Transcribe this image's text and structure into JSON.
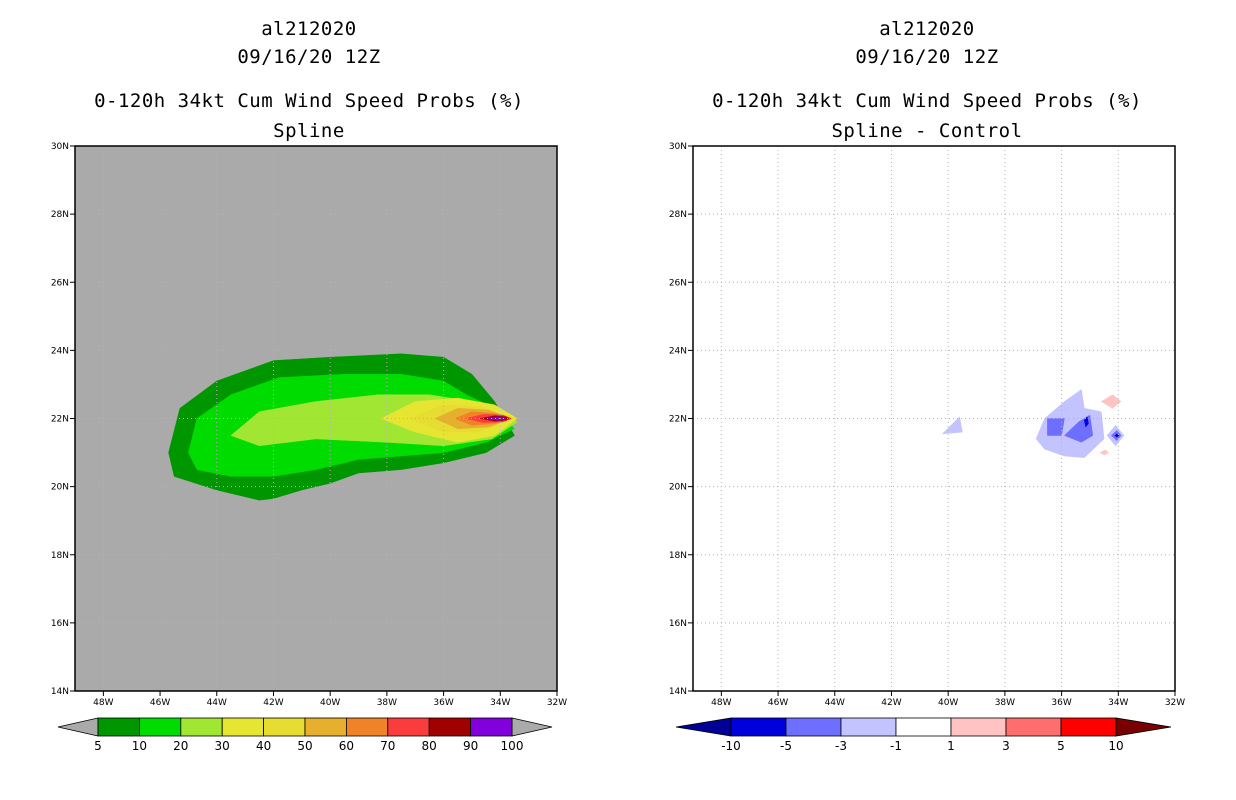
{
  "chart_data": [
    {
      "type": "heatmap",
      "title_lines": [
        "al212020",
        "09/16/20 12Z",
        "0-120h 34kt Cum Wind Speed Probs (%)",
        "Spline"
      ],
      "xlabel": "",
      "ylabel": "",
      "x_ticks": [
        "48W",
        "46W",
        "44W",
        "42W",
        "40W",
        "38W",
        "36W",
        "34W",
        "32W"
      ],
      "x_tick_values": [
        -48,
        -46,
        -44,
        -42,
        -40,
        -38,
        -36,
        -34,
        -32
      ],
      "y_ticks": [
        "14N",
        "16N",
        "18N",
        "20N",
        "22N",
        "24N",
        "26N",
        "28N",
        "30N"
      ],
      "y_tick_values": [
        14,
        16,
        18,
        20,
        22,
        24,
        26,
        28,
        30
      ],
      "xlim": [
        -49,
        -32
      ],
      "ylim": [
        14,
        30
      ],
      "grid": true,
      "background_color": "#aaaaaa",
      "colorbar_labels": [
        "5",
        "10",
        "20",
        "30",
        "40",
        "50",
        "60",
        "70",
        "80",
        "90",
        "100"
      ],
      "colorbar_levels": [
        5,
        10,
        20,
        30,
        40,
        50,
        60,
        70,
        80,
        90,
        100
      ],
      "colorbar_colors": [
        "#009600",
        "#00dc00",
        "#a0e632",
        "#e6e632",
        "#e6dc32",
        "#e6af2d",
        "#f08228",
        "#fa3c3c",
        "#a00000",
        "#8200dc"
      ],
      "colorbar_ends": [
        "#aaaaaa",
        "#aaaaaa"
      ],
      "contours": [
        {
          "level": 5,
          "color": "#009600",
          "polygon": [
            [
              -45.7,
              21
            ],
            [
              -45.3,
              22.3
            ],
            [
              -44,
              23.1
            ],
            [
              -42,
              23.7
            ],
            [
              -40,
              23.8
            ],
            [
              -37.5,
              23.9
            ],
            [
              -36,
              23.8
            ],
            [
              -35,
              23.3
            ],
            [
              -34.2,
              22.5
            ],
            [
              -33.5,
              21.5
            ],
            [
              -34.5,
              21
            ],
            [
              -36,
              20.7
            ],
            [
              -37.5,
              20.5
            ],
            [
              -39,
              20.4
            ],
            [
              -40,
              20.1
            ],
            [
              -41,
              19.9
            ],
            [
              -42,
              19.65
            ],
            [
              -42.5,
              19.6
            ],
            [
              -44,
              19.9
            ],
            [
              -45.5,
              20.3
            ]
          ]
        },
        {
          "level": 10,
          "color": "#00dc00",
          "polygon": [
            [
              -45,
              21
            ],
            [
              -44.7,
              22
            ],
            [
              -43.5,
              22.7
            ],
            [
              -41.8,
              23.2
            ],
            [
              -39.5,
              23.3
            ],
            [
              -37.5,
              23.3
            ],
            [
              -36,
              23.1
            ],
            [
              -35.2,
              22.7
            ],
            [
              -34.2,
              22.3
            ],
            [
              -33.5,
              21.7
            ],
            [
              -34.5,
              21.3
            ],
            [
              -36,
              21
            ],
            [
              -37.5,
              20.9
            ],
            [
              -39,
              20.8
            ],
            [
              -40.5,
              20.5
            ],
            [
              -42,
              20.3
            ],
            [
              -43.5,
              20.3
            ],
            [
              -44.7,
              20.5
            ]
          ]
        },
        {
          "level": 20,
          "color": "#a0e632",
          "polygon": [
            [
              -43.5,
              21.5
            ],
            [
              -42.5,
              22.2
            ],
            [
              -40.5,
              22.5
            ],
            [
              -38.3,
              22.7
            ],
            [
              -36.5,
              22.7
            ],
            [
              -35,
              22.5
            ],
            [
              -34,
              22.2
            ],
            [
              -33.4,
              21.9
            ],
            [
              -34.3,
              21.4
            ],
            [
              -36,
              21.2
            ],
            [
              -38,
              21.3
            ],
            [
              -40.5,
              21.4
            ],
            [
              -42.5,
              21.2
            ]
          ]
        },
        {
          "level": 30,
          "color": "#e6e632",
          "polygon": [
            [
              -38.2,
              22
            ],
            [
              -37,
              22.5
            ],
            [
              -35.5,
              22.6
            ],
            [
              -34.2,
              22.4
            ],
            [
              -33.4,
              22
            ],
            [
              -34.2,
              21.5
            ],
            [
              -35.5,
              21.3
            ],
            [
              -37,
              21.6
            ]
          ]
        },
        {
          "level": 40,
          "color": "#e6dc32",
          "polygon": [
            [
              -37.2,
              22
            ],
            [
              -36,
              22.4
            ],
            [
              -34.8,
              22.35
            ],
            [
              -33.5,
              22
            ],
            [
              -34.8,
              21.6
            ],
            [
              -36,
              21.6
            ]
          ]
        },
        {
          "level": 50,
          "color": "#e6af2d",
          "polygon": [
            [
              -36.3,
              22
            ],
            [
              -35.5,
              22.3
            ],
            [
              -34.4,
              22.25
            ],
            [
              -33.6,
              22
            ],
            [
              -34.4,
              21.75
            ],
            [
              -35.5,
              21.7
            ]
          ]
        },
        {
          "level": 60,
          "color": "#f08228",
          "polygon": [
            [
              -35.6,
              22
            ],
            [
              -35,
              22.2
            ],
            [
              -34.2,
              22.15
            ],
            [
              -33.6,
              22
            ],
            [
              -34.2,
              21.85
            ],
            [
              -35,
              21.8
            ]
          ]
        },
        {
          "level": 70,
          "color": "#fa3c3c",
          "polygon": [
            [
              -35.2,
              22
            ],
            [
              -34.6,
              22.12
            ],
            [
              -33.9,
              22.1
            ],
            [
              -33.6,
              22
            ],
            [
              -33.9,
              21.9
            ],
            [
              -34.6,
              21.88
            ]
          ]
        },
        {
          "level": 80,
          "color": "#a00000",
          "polygon": [
            [
              -34.7,
              22
            ],
            [
              -34.2,
              22.08
            ],
            [
              -33.8,
              22.05
            ],
            [
              -33.7,
              22
            ],
            [
              -33.8,
              21.95
            ],
            [
              -34.2,
              21.92
            ]
          ]
        },
        {
          "level": 90,
          "color": "#8200dc",
          "polygon": [
            [
              -34.45,
              22
            ],
            [
              -34.1,
              22.05
            ],
            [
              -33.85,
              22.02
            ],
            [
              -33.8,
              22
            ],
            [
              -33.85,
              21.98
            ],
            [
              -34.1,
              21.95
            ]
          ]
        }
      ]
    },
    {
      "type": "heatmap",
      "title_lines": [
        "al212020",
        "09/16/20 12Z",
        "0-120h 34kt Cum Wind Speed Probs (%)",
        "Spline - Control"
      ],
      "xlabel": "",
      "ylabel": "",
      "x_ticks": [
        "48W",
        "46W",
        "44W",
        "42W",
        "40W",
        "38W",
        "36W",
        "34W",
        "32W"
      ],
      "x_tick_values": [
        -48,
        -46,
        -44,
        -42,
        -40,
        -38,
        -36,
        -34,
        -32
      ],
      "y_ticks": [
        "14N",
        "16N",
        "18N",
        "20N",
        "22N",
        "24N",
        "26N",
        "28N",
        "30N"
      ],
      "y_tick_values": [
        14,
        16,
        18,
        20,
        22,
        24,
        26,
        28,
        30
      ],
      "xlim": [
        -49,
        -32
      ],
      "ylim": [
        14,
        30
      ],
      "grid": true,
      "background_color": "#ffffff",
      "colorbar_labels": [
        "-10",
        "-5",
        "-3",
        "-1",
        "1",
        "3",
        "5",
        "10"
      ],
      "colorbar_levels": [
        -10,
        -5,
        -3,
        -1,
        1,
        3,
        5,
        10
      ],
      "colorbar_colors": [
        "#0000dc",
        "#6e6eff",
        "#c3c3ff",
        "#ffffff",
        "#ffc3c3",
        "#ff6e6e",
        "#ff0000"
      ],
      "colorbar_ends": [
        "#000096",
        "#780000"
      ],
      "contours": [
        {
          "level": -1,
          "color": "#c3c3ff",
          "polygon": [
            [
              -40.2,
              21.55
            ],
            [
              -39.6,
              22.05
            ],
            [
              -39.5,
              21.6
            ]
          ]
        },
        {
          "level": -1,
          "color": "#c3c3ff",
          "polygon": [
            [
              -36.9,
              21.4
            ],
            [
              -36.6,
              22
            ],
            [
              -35.9,
              22.5
            ],
            [
              -35.3,
              22.85
            ],
            [
              -35.2,
              22.3
            ],
            [
              -34.6,
              22.2
            ],
            [
              -34.5,
              21.4
            ],
            [
              -35.2,
              20.85
            ],
            [
              -35.9,
              20.9
            ],
            [
              -36.6,
              21.1
            ]
          ]
        },
        {
          "level": -3,
          "color": "#6e6eff",
          "polygon": [
            [
              -36.5,
              21.5
            ],
            [
              -36.5,
              22
            ],
            [
              -35.9,
              22
            ],
            [
              -36,
              21.5
            ]
          ]
        },
        {
          "level": -3,
          "color": "#6e6eff",
          "polygon": [
            [
              -35.9,
              21.5
            ],
            [
              -35.4,
              21.9
            ],
            [
              -35,
              22.1
            ],
            [
              -34.9,
              21.5
            ],
            [
              -35.3,
              21.3
            ]
          ]
        },
        {
          "level": -1,
          "color": "#c3c3ff",
          "polygon": [
            [
              -34.1,
              21.2
            ],
            [
              -34.4,
              21.5
            ],
            [
              -34.1,
              21.8
            ],
            [
              -33.8,
              21.5
            ]
          ]
        },
        {
          "level": -3,
          "color": "#6e6eff",
          "polygon": [
            [
              -34.05,
              21.35
            ],
            [
              -34.25,
              21.5
            ],
            [
              -34.05,
              21.65
            ],
            [
              -33.9,
              21.5
            ]
          ]
        },
        {
          "level": -5,
          "color": "#0000dc",
          "polygon": [
            [
              -34.05,
              21.45
            ],
            [
              -34.12,
              21.5
            ],
            [
              -34.05,
              21.55
            ],
            [
              -33.98,
              21.5
            ]
          ]
        },
        {
          "level": -5,
          "color": "#0000dc",
          "polygon": [
            [
              -35.15,
              21.75
            ],
            [
              -35.2,
              21.95
            ],
            [
              -35.1,
              22.05
            ],
            [
              -35.05,
              21.85
            ]
          ]
        },
        {
          "level": 1,
          "color": "#ffc3c3",
          "polygon": [
            [
              -34.6,
              22.5
            ],
            [
              -34.2,
              22.7
            ],
            [
              -33.9,
              22.5
            ],
            [
              -34.2,
              22.3
            ]
          ]
        },
        {
          "level": 1,
          "color": "#ffc3c3",
          "polygon": [
            [
              -34.65,
              21
            ],
            [
              -34.45,
              21.08
            ],
            [
              -34.35,
              21
            ],
            [
              -34.5,
              20.93
            ]
          ]
        }
      ]
    }
  ]
}
